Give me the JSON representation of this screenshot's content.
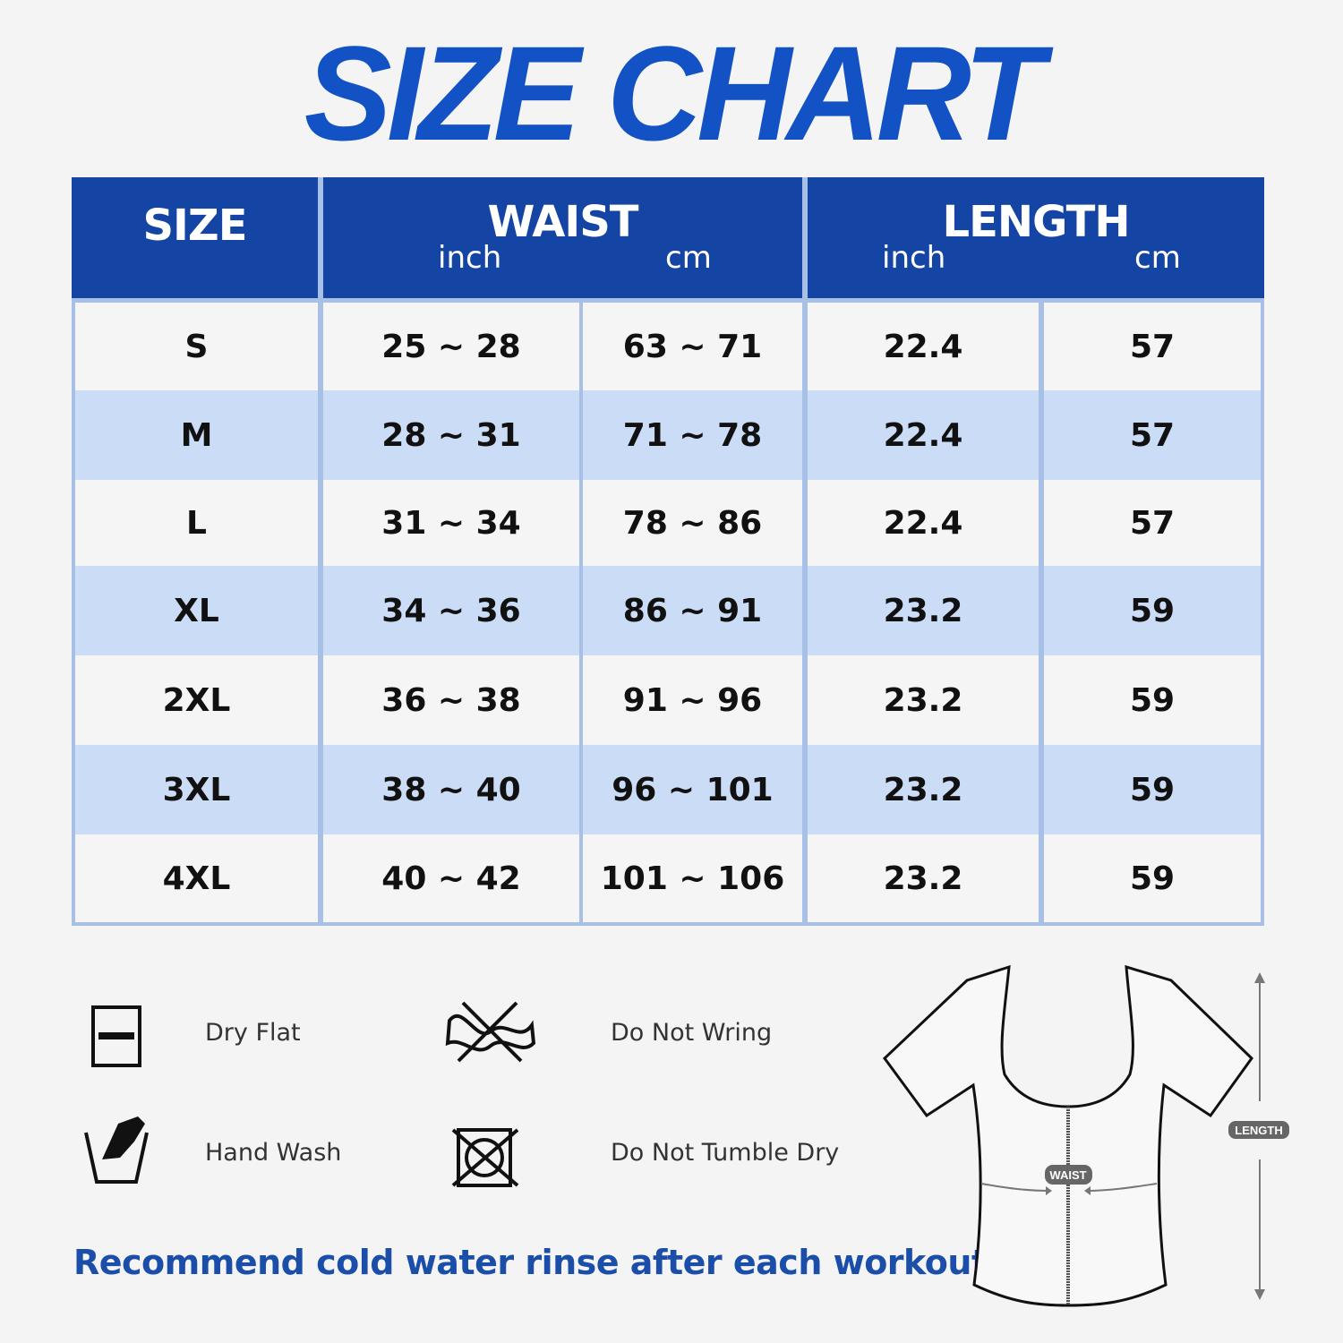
{
  "title": "SIZE CHART",
  "table": {
    "headers": {
      "size": "SIZE",
      "waist": "WAIST",
      "length": "LENGTH",
      "inch": "inch",
      "cm": "cm"
    },
    "rows": [
      {
        "size": "S",
        "waist_inch": "25 ~ 28",
        "waist_cm": "63 ~ 71",
        "length_inch": "22.4",
        "length_cm": "57"
      },
      {
        "size": "M",
        "waist_inch": "28 ~ 31",
        "waist_cm": "71 ~ 78",
        "length_inch": "22.4",
        "length_cm": "57"
      },
      {
        "size": "L",
        "waist_inch": "31 ~ 34",
        "waist_cm": "78 ~ 86",
        "length_inch": "22.4",
        "length_cm": "57"
      },
      {
        "size": "XL",
        "waist_inch": "34 ~ 36",
        "waist_cm": "86 ~ 91",
        "length_inch": "23.2",
        "length_cm": "59"
      },
      {
        "size": "2XL",
        "waist_inch": "36 ~ 38",
        "waist_cm": "91 ~ 96",
        "length_inch": "23.2",
        "length_cm": "59"
      },
      {
        "size": "3XL",
        "waist_inch": "38 ~ 40",
        "waist_cm": "96 ~ 101",
        "length_inch": "23.2",
        "length_cm": "59"
      },
      {
        "size": "4XL",
        "waist_inch": "40 ~ 42",
        "waist_cm": "101 ~ 106",
        "length_inch": "23.2",
        "length_cm": "59"
      }
    ]
  },
  "care": [
    {
      "label": "Dry Flat",
      "icon": "dry-flat-icon"
    },
    {
      "label": "Do Not Wring",
      "icon": "do-not-wring-icon"
    },
    {
      "label": "Hand Wash",
      "icon": "hand-wash-icon"
    },
    {
      "label": "Do Not Tumble Dry",
      "icon": "do-not-tumble-dry-icon"
    }
  ],
  "note": "Recommend cold water rinse after each workout.",
  "diagram": {
    "waist_label": "WAIST",
    "length_label": "LENGTH"
  },
  "colors": {
    "title": "#1352c4",
    "header": "#1444a4",
    "stripe": "#cbdcf7",
    "note": "#1a4ea8"
  }
}
